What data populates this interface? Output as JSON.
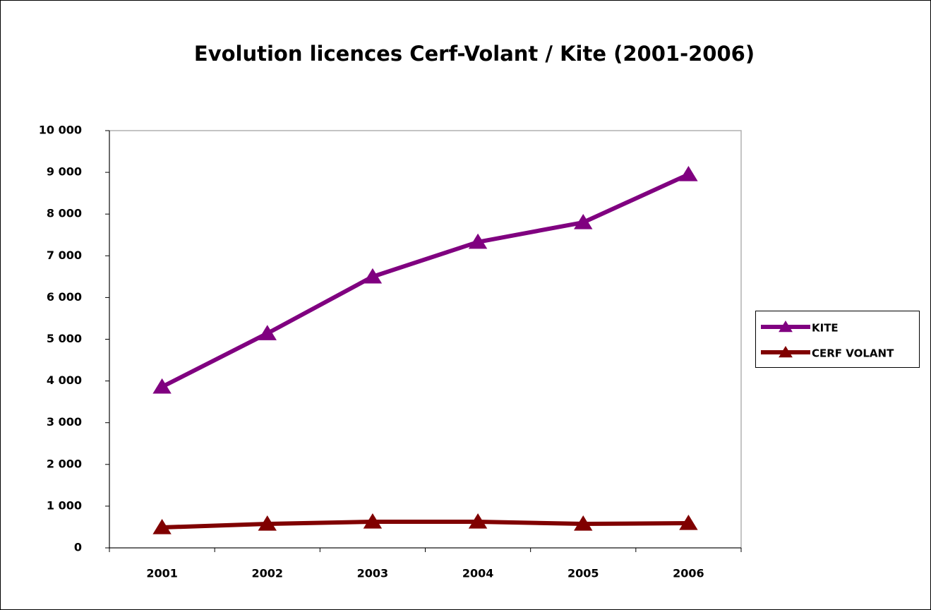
{
  "chart_data": {
    "type": "line",
    "title": "Evolution licences Cerf-Volant / Kite (2001-2006)",
    "categories": [
      "2001",
      "2002",
      "2003",
      "2004",
      "2005",
      "2006"
    ],
    "series": [
      {
        "name": "KITE",
        "color": "#800080",
        "values": [
          3860,
          5140,
          6500,
          7330,
          7800,
          8950
        ]
      },
      {
        "name": "CERF VOLANT",
        "color": "#800000",
        "values": [
          490,
          575,
          626,
          626,
          575,
          592
        ]
      }
    ],
    "ylim": [
      0,
      10000
    ],
    "yticks": [
      0,
      {
        "value": 1000,
        "label": "1 000"
      },
      {
        "value": 2000,
        "label": "2 000"
      },
      {
        "value": 3000,
        "label": "3 000"
      },
      {
        "value": 4000,
        "label": "4 000"
      },
      {
        "value": 5000,
        "label": "5 000"
      },
      {
        "value": 6000,
        "label": "6 000"
      },
      {
        "value": 7000,
        "label": "7 000"
      },
      {
        "value": 8000,
        "label": "8 000"
      },
      {
        "value": 9000,
        "label": "9 000"
      },
      {
        "value": 10000,
        "label": "10 000"
      }
    ],
    "grid": false,
    "legend": "right"
  }
}
